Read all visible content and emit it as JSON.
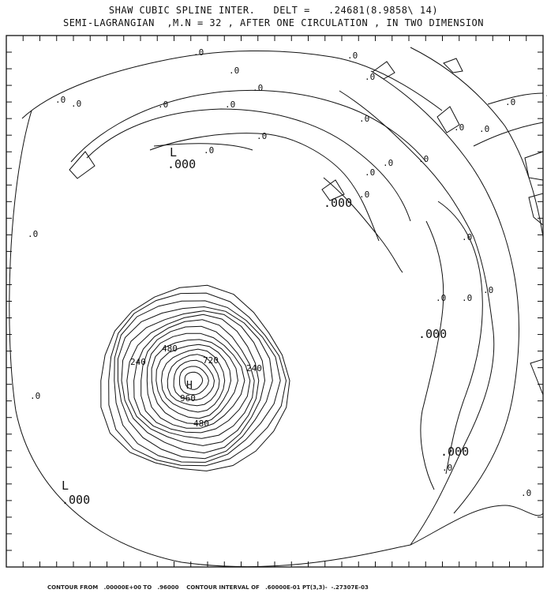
{
  "header": {
    "title_line1": "SHAW CUBIC SPLINE INTER.   DELT =   .24681(8.9858\\ 14)",
    "title_line2": "SEMI-LAGRANGIAN  ,M.N = 32 , AFTER ONE CIRCULATION , IN TWO DIMENSION"
  },
  "footer": {
    "text": "CONTOUR FROM   .00000E+00 TO   .96000    CONTOUR INTERVAL OF   .60000E-01 PT(3,3)-  -.27307E-03"
  },
  "chart_data": {
    "type": "contour",
    "title": "SHAW CUBIC SPLINE INTER.   DELT =   .24681(8.9858\\ 14)",
    "subtitle": "SEMI-LAGRANGIAN  ,M.N = 32 , AFTER ONE CIRCULATION , IN TWO DIMENSION",
    "contour_min": 0.0,
    "contour_max": 0.96,
    "contour_interval": 0.06,
    "pt_3_3_value": -0.00027307,
    "grid": false,
    "contour_labels": [
      ".0",
      ".0",
      ".0",
      ".0",
      ".0",
      ".0",
      ".0",
      ".0",
      ".0",
      ".0",
      ".0",
      ".0",
      ".0",
      ".0",
      ".0",
      ".0",
      ".0",
      ".0",
      ".0",
      ".0",
      ".0",
      ".0",
      ".0",
      ".0",
      ".0",
      ".0",
      ".0",
      ".0",
      ".000",
      ".000",
      ".000",
      ".000",
      ".000",
      "240",
      "240",
      "480",
      "480",
      "720",
      "960"
    ],
    "extremum_labels": [
      "L",
      "L",
      "H"
    ],
    "peak_value": 0.96,
    "peak_label": "H"
  }
}
